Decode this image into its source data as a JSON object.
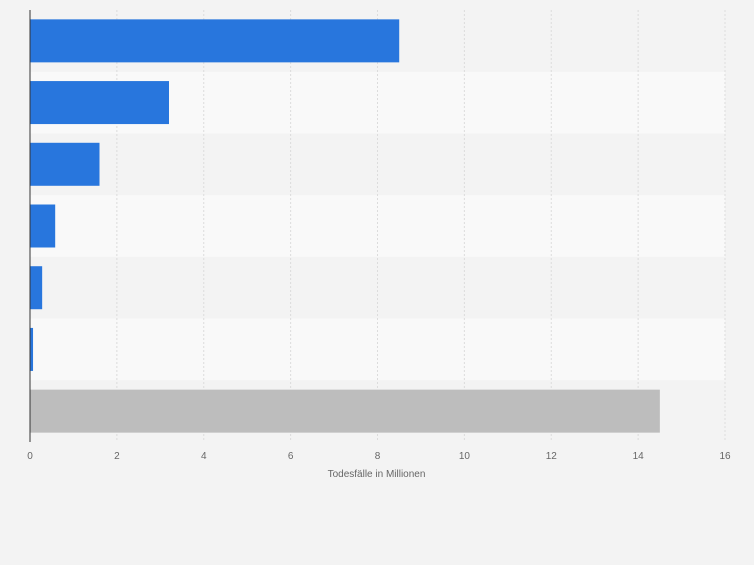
{
  "chart_data": {
    "type": "bar",
    "orientation": "horizontal",
    "categories": [
      "",
      "",
      "",
      "",
      "",
      "",
      ""
    ],
    "values": [
      8.5,
      3.2,
      1.6,
      0.58,
      0.28,
      0.07,
      14.5
    ],
    "bar_colors": [
      "#2876dd",
      "#2876dd",
      "#2876dd",
      "#2876dd",
      "#2876dd",
      "#2876dd",
      "#bdbdbd"
    ],
    "xlabel": "Todesfälle in Millionen",
    "xlim": [
      0,
      16
    ],
    "x_ticks": [
      "0",
      "2",
      "4",
      "6",
      "8",
      "10",
      "12",
      "14",
      "16"
    ],
    "grid": true,
    "colors": {
      "background": "#f3f3f3",
      "band_light": "#f9f9f9",
      "band_dark": "#f3f3f3",
      "grid": "#dcdcdc",
      "axis": "#333333",
      "tick_text": "#666666"
    }
  }
}
